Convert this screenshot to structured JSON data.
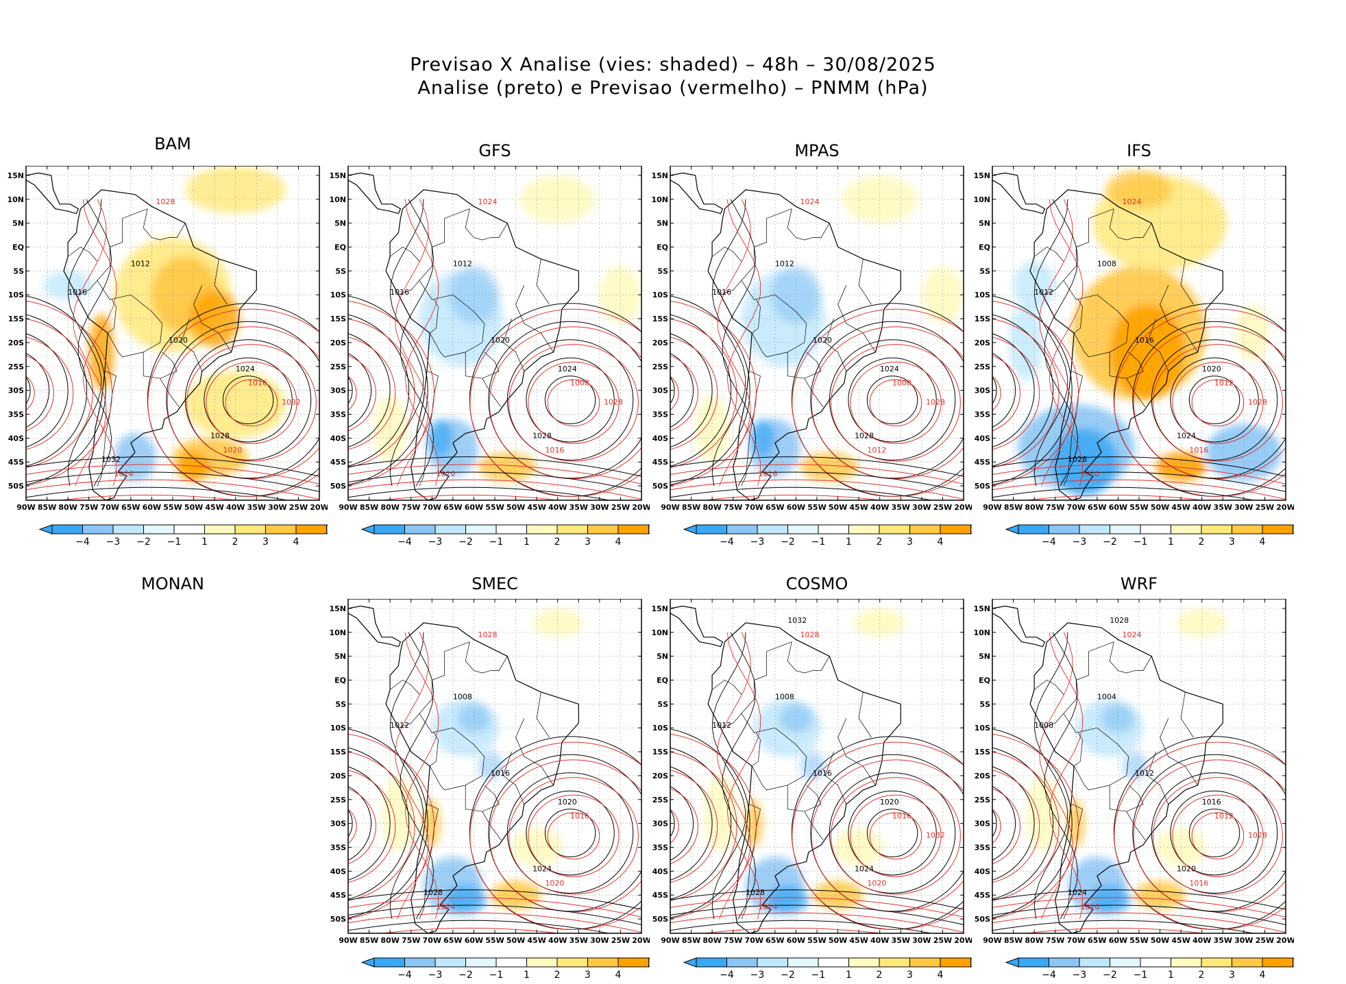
{
  "title": {
    "line1": "Previsao X Analise (vies: shaded) – 48h – 30/08/2025",
    "line2": "Analise (preto) e Previsao (vermelho) – PNMM (hPa)"
  },
  "colors": {
    "neg4": "#39a8f5",
    "neg3": "#8cc6f5",
    "neg2": "#bfe8fb",
    "neg1": "#e2f8fd",
    "pos1": "#fffac0",
    "pos2": "#ffe97a",
    "pos3": "#ffc845",
    "pos4": "#ffa200",
    "analysis_contour": "#000000",
    "forecast_contour": "#e0302c",
    "grid": "#9a9a9a"
  },
  "x_ticks": [
    "90W",
    "85W",
    "80W",
    "75W",
    "70W",
    "65W",
    "60W",
    "55W",
    "50W",
    "45W",
    "40W",
    "35W",
    "30W",
    "25W",
    "20W"
  ],
  "y_ticks": [
    "15N",
    "10N",
    "5N",
    "EQ",
    "5S",
    "10S",
    "15S",
    "20S",
    "25S",
    "30S",
    "35S",
    "40S",
    "45S",
    "50S"
  ],
  "colorbar_labels": [
    "-4",
    "-3",
    "-2",
    "-1",
    "1",
    "2",
    "3",
    "4"
  ],
  "panels": [
    {
      "name": "BAM",
      "has_map": true,
      "bias": "pos",
      "contours": {
        "analysis": [
          "1012",
          "1016",
          "1020",
          "1024",
          "1028",
          "1032"
        ],
        "forecast": [
          "1016",
          "1020",
          "1024",
          "1028",
          "1032"
        ]
      }
    },
    {
      "name": "GFS",
      "has_map": true,
      "bias": "neg",
      "contours": {
        "analysis": [
          "1012",
          "1016",
          "1020",
          "1024",
          "1028"
        ],
        "forecast": [
          "1008",
          "1016",
          "1020",
          "1024",
          "1028"
        ]
      }
    },
    {
      "name": "MPAS",
      "has_map": true,
      "bias": "neg",
      "contours": {
        "analysis": [
          "1012",
          "1016",
          "1020",
          "1024",
          "1028"
        ],
        "forecast": [
          "1008",
          "1012",
          "1016",
          "1024",
          "1028"
        ]
      }
    },
    {
      "name": "IFS",
      "has_map": true,
      "bias": "strong",
      "contours": {
        "analysis": [
          "1008",
          "1012",
          "1016",
          "1020",
          "1024",
          "1028"
        ],
        "forecast": [
          "1012",
          "1016",
          "1020",
          "1024",
          "1028"
        ]
      }
    },
    {
      "name": "MONAN",
      "has_map": false
    },
    {
      "name": "SMEC",
      "has_map": true,
      "bias": "mixed",
      "contours": {
        "analysis": [
          "1008",
          "1012",
          "1016",
          "1020",
          "1024",
          "1028"
        ],
        "forecast": [
          "1016",
          "1020",
          "1024",
          "1028"
        ]
      }
    },
    {
      "name": "COSMO",
      "has_map": true,
      "bias": "mixed",
      "contours": {
        "analysis": [
          "1008",
          "1012",
          "1016",
          "1020",
          "1024",
          "1028",
          "1032"
        ],
        "forecast": [
          "1016",
          "1020",
          "1024",
          "1028",
          "1032"
        ]
      }
    },
    {
      "name": "WRF",
      "has_map": true,
      "bias": "mixed",
      "contours": {
        "analysis": [
          "1004",
          "1008",
          "1012",
          "1016",
          "1020",
          "1024",
          "1028"
        ],
        "forecast": [
          "1012",
          "1016",
          "1020",
          "1024",
          "1028"
        ]
      }
    }
  ],
  "chart_data": {
    "type": "heatmap",
    "title": "Previsao X Analise (vies: shaded) – 48h – 30/08/2025",
    "subtitle": "Analise (preto) e Previsao (vermelho) – PNMM (hPa)",
    "xlim": [
      -90,
      -20
    ],
    "ylim": [
      -53,
      17
    ],
    "x_ticks": [
      "90W",
      "85W",
      "80W",
      "75W",
      "70W",
      "65W",
      "60W",
      "55W",
      "50W",
      "45W",
      "40W",
      "35W",
      "30W",
      "25W",
      "20W"
    ],
    "y_ticks": [
      "15N",
      "10N",
      "5N",
      "EQ",
      "5S",
      "10S",
      "15S",
      "20S",
      "25S",
      "30S",
      "35S",
      "40S",
      "45S",
      "50S"
    ],
    "bias_levels": [
      -4,
      -3,
      -2,
      -1,
      1,
      2,
      3,
      4
    ],
    "grid": true,
    "panels": [
      "BAM",
      "GFS",
      "MPAS",
      "IFS",
      "MONAN",
      "SMEC",
      "COSMO",
      "WRF"
    ]
  }
}
